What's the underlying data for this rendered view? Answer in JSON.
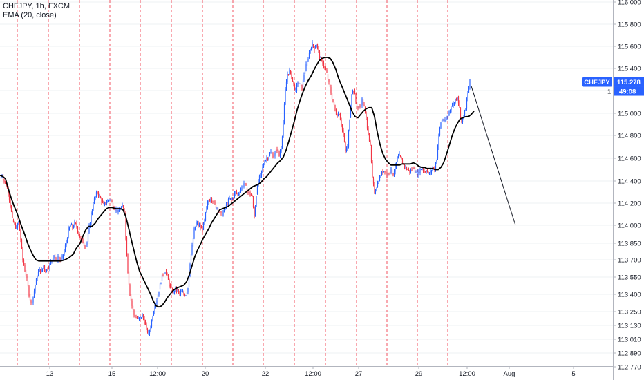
{
  "chart_data": {
    "type": "candlestick",
    "title": "CHFJPY, 1h, FXCM",
    "indicator": "EMA (20, close)",
    "y_ticks": [
      "116.000",
      "115.800",
      "115.600",
      "115.400",
      "115.200",
      "115.000",
      "114.800",
      "114.600",
      "114.400",
      "114.200",
      "114.000",
      "113.850",
      "113.700",
      "113.550",
      "113.400",
      "113.250",
      "113.130",
      "113.010",
      "112.890",
      "112.770"
    ],
    "x_ticks": [
      "13",
      "15",
      "12:00",
      "20",
      "22",
      "12:00",
      "27",
      "29",
      "12:00",
      "Aug",
      "5"
    ],
    "last_price": {
      "symbol": "CHFJPY",
      "value": "115.278",
      "countdown": "49:08",
      "marker": "1"
    },
    "ema_close": [
      [
        0,
        114.45
      ],
      [
        4,
        114.44
      ],
      [
        8,
        114.42
      ],
      [
        12,
        114.33
      ],
      [
        16,
        114.25
      ],
      [
        20,
        114.18
      ],
      [
        24,
        114.12
      ],
      [
        28,
        114.05
      ],
      [
        32,
        113.98
      ],
      [
        36,
        113.92
      ],
      [
        40,
        113.85
      ],
      [
        44,
        113.79
      ],
      [
        48,
        113.74
      ],
      [
        52,
        113.7
      ],
      [
        56,
        113.69
      ],
      [
        60,
        113.69
      ],
      [
        66,
        113.69
      ],
      [
        72,
        113.69
      ],
      [
        80,
        113.69
      ],
      [
        88,
        113.69
      ],
      [
        94,
        113.7
      ],
      [
        100,
        113.72
      ],
      [
        106,
        113.75
      ],
      [
        110,
        113.8
      ],
      [
        116,
        113.85
      ],
      [
        120,
        113.91
      ],
      [
        124,
        113.96
      ],
      [
        128,
        113.99
      ],
      [
        133,
        113.99
      ],
      [
        138,
        114.02
      ],
      [
        142,
        114.06
      ],
      [
        146,
        114.09
      ],
      [
        150,
        114.12
      ],
      [
        154,
        114.15
      ],
      [
        158,
        114.16
      ],
      [
        162,
        114.16
      ],
      [
        168,
        114.15
      ],
      [
        174,
        114.15
      ],
      [
        178,
        114.14
      ],
      [
        182,
        114.08
      ],
      [
        186,
        113.98
      ],
      [
        190,
        113.88
      ],
      [
        194,
        113.78
      ],
      [
        198,
        113.68
      ],
      [
        202,
        113.6
      ],
      [
        206,
        113.55
      ],
      [
        210,
        113.5
      ],
      [
        214,
        113.45
      ],
      [
        218,
        113.4
      ],
      [
        222,
        113.34
      ],
      [
        226,
        113.3
      ],
      [
        230,
        113.29
      ],
      [
        234,
        113.3
      ],
      [
        238,
        113.33
      ],
      [
        242,
        113.37
      ],
      [
        246,
        113.4
      ],
      [
        250,
        113.43
      ],
      [
        254,
        113.45
      ],
      [
        258,
        113.46
      ],
      [
        262,
        113.47
      ],
      [
        266,
        113.48
      ],
      [
        270,
        113.51
      ],
      [
        274,
        113.57
      ],
      [
        278,
        113.65
      ],
      [
        282,
        113.73
      ],
      [
        286,
        113.79
      ],
      [
        290,
        113.84
      ],
      [
        294,
        113.89
      ],
      [
        298,
        113.93
      ],
      [
        302,
        113.97
      ],
      [
        306,
        114.02
      ],
      [
        310,
        114.06
      ],
      [
        314,
        114.1
      ],
      [
        318,
        114.14
      ],
      [
        322,
        114.15
      ],
      [
        326,
        114.16
      ],
      [
        330,
        114.17
      ],
      [
        334,
        114.19
      ],
      [
        338,
        114.21
      ],
      [
        342,
        114.23
      ],
      [
        346,
        114.25
      ],
      [
        350,
        114.27
      ],
      [
        354,
        114.29
      ],
      [
        358,
        114.31
      ],
      [
        362,
        114.33
      ],
      [
        366,
        114.35
      ],
      [
        370,
        114.36
      ],
      [
        374,
        114.37
      ],
      [
        378,
        114.39
      ],
      [
        382,
        114.42
      ],
      [
        386,
        114.44
      ],
      [
        390,
        114.47
      ],
      [
        394,
        114.5
      ],
      [
        398,
        114.53
      ],
      [
        402,
        114.56
      ],
      [
        406,
        114.58
      ],
      [
        410,
        114.61
      ],
      [
        414,
        114.67
      ],
      [
        418,
        114.75
      ],
      [
        422,
        114.84
      ],
      [
        426,
        114.93
      ],
      [
        430,
        115.03
      ],
      [
        434,
        115.11
      ],
      [
        438,
        115.18
      ],
      [
        442,
        115.24
      ],
      [
        446,
        115.29
      ],
      [
        450,
        115.33
      ],
      [
        454,
        115.38
      ],
      [
        458,
        115.43
      ],
      [
        462,
        115.47
      ],
      [
        466,
        115.49
      ],
      [
        470,
        115.5
      ],
      [
        474,
        115.5
      ],
      [
        478,
        115.49
      ],
      [
        482,
        115.45
      ],
      [
        486,
        115.39
      ],
      [
        490,
        115.31
      ],
      [
        494,
        115.25
      ],
      [
        498,
        115.19
      ],
      [
        502,
        115.13
      ],
      [
        506,
        115.07
      ],
      [
        510,
        115.01
      ],
      [
        514,
        114.97
      ],
      [
        518,
        114.96
      ],
      [
        522,
        114.99
      ],
      [
        526,
        115.02
      ],
      [
        530,
        115.04
      ],
      [
        534,
        115.05
      ],
      [
        538,
        115.05
      ],
      [
        542,
        114.97
      ],
      [
        546,
        114.83
      ],
      [
        550,
        114.72
      ],
      [
        554,
        114.64
      ],
      [
        558,
        114.59
      ],
      [
        562,
        114.56
      ],
      [
        566,
        114.54
      ],
      [
        570,
        114.54
      ],
      [
        574,
        114.54
      ],
      [
        578,
        114.54
      ],
      [
        582,
        114.55
      ],
      [
        586,
        114.55
      ],
      [
        590,
        114.55
      ],
      [
        594,
        114.55
      ],
      [
        598,
        114.56
      ],
      [
        602,
        114.55
      ],
      [
        606,
        114.53
      ],
      [
        610,
        114.52
      ],
      [
        614,
        114.52
      ],
      [
        618,
        114.51
      ],
      [
        622,
        114.51
      ],
      [
        626,
        114.51
      ],
      [
        630,
        114.5
      ],
      [
        634,
        114.5
      ],
      [
        638,
        114.52
      ],
      [
        642,
        114.56
      ],
      [
        646,
        114.63
      ],
      [
        650,
        114.71
      ],
      [
        654,
        114.79
      ],
      [
        658,
        114.86
      ],
      [
        662,
        114.91
      ],
      [
        666,
        114.95
      ],
      [
        670,
        114.96
      ],
      [
        674,
        114.97
      ],
      [
        678,
        114.97
      ],
      [
        682,
        114.99
      ],
      [
        686,
        115.02
      ]
    ],
    "candle_path": [
      [
        0,
        114.42
      ],
      [
        3,
        114.46
      ],
      [
        6,
        114.4
      ],
      [
        9,
        114.36
      ],
      [
        12,
        114.3
      ],
      [
        15,
        114.18
      ],
      [
        18,
        114.05
      ],
      [
        21,
        114.0
      ],
      [
        24,
        113.98
      ],
      [
        27,
        114.03
      ],
      [
        30,
        113.88
      ],
      [
        33,
        113.7
      ],
      [
        36,
        113.61
      ],
      [
        39,
        113.52
      ],
      [
        42,
        113.4
      ],
      [
        45,
        113.32
      ],
      [
        48,
        113.38
      ],
      [
        51,
        113.48
      ],
      [
        54,
        113.56
      ],
      [
        57,
        113.62
      ],
      [
        60,
        113.6
      ],
      [
        63,
        113.65
      ],
      [
        66,
        113.6
      ],
      [
        69,
        113.63
      ],
      [
        72,
        113.66
      ],
      [
        75,
        113.7
      ],
      [
        78,
        113.75
      ],
      [
        81,
        113.68
      ],
      [
        84,
        113.73
      ],
      [
        87,
        113.7
      ],
      [
        90,
        113.72
      ],
      [
        93,
        113.78
      ],
      [
        96,
        113.86
      ],
      [
        99,
        113.96
      ],
      [
        102,
        114.0
      ],
      [
        105,
        113.98
      ],
      [
        108,
        114.02
      ],
      [
        111,
        113.99
      ],
      [
        114,
        113.93
      ],
      [
        117,
        113.88
      ],
      [
        120,
        113.86
      ],
      [
        123,
        113.82
      ],
      [
        126,
        113.86
      ],
      [
        129,
        113.98
      ],
      [
        132,
        114.1
      ],
      [
        135,
        114.2
      ],
      [
        138,
        114.26
      ],
      [
        141,
        114.3
      ],
      [
        144,
        114.26
      ],
      [
        147,
        114.22
      ],
      [
        150,
        114.18
      ],
      [
        153,
        114.2
      ],
      [
        156,
        114.22
      ],
      [
        159,
        114.24
      ],
      [
        162,
        114.2
      ],
      [
        165,
        114.16
      ],
      [
        168,
        114.14
      ],
      [
        171,
        114.12
      ],
      [
        174,
        114.15
      ],
      [
        177,
        114.17
      ],
      [
        180,
        114.12
      ],
      [
        182,
        113.9
      ],
      [
        185,
        113.6
      ],
      [
        188,
        113.4
      ],
      [
        191,
        113.3
      ],
      [
        194,
        113.22
      ],
      [
        197,
        113.2
      ],
      [
        200,
        113.18
      ],
      [
        203,
        113.2
      ],
      [
        206,
        113.22
      ],
      [
        209,
        113.16
      ],
      [
        212,
        113.1
      ],
      [
        215,
        113.06
      ],
      [
        218,
        113.12
      ],
      [
        221,
        113.22
      ],
      [
        224,
        113.3
      ],
      [
        227,
        113.36
      ],
      [
        230,
        113.44
      ],
      [
        233,
        113.52
      ],
      [
        236,
        113.58
      ],
      [
        239,
        113.6
      ],
      [
        242,
        113.56
      ],
      [
        245,
        113.48
      ],
      [
        248,
        113.44
      ],
      [
        251,
        113.42
      ],
      [
        254,
        113.45
      ],
      [
        257,
        113.43
      ],
      [
        260,
        113.4
      ],
      [
        263,
        113.42
      ],
      [
        266,
        113.4
      ],
      [
        269,
        113.4
      ],
      [
        272,
        113.46
      ],
      [
        275,
        113.68
      ],
      [
        278,
        113.82
      ],
      [
        281,
        113.96
      ],
      [
        284,
        114.02
      ],
      [
        287,
        114.0
      ],
      [
        290,
        113.98
      ],
      [
        293,
        113.96
      ],
      [
        296,
        114.04
      ],
      [
        299,
        114.16
      ],
      [
        302,
        114.22
      ],
      [
        305,
        114.25
      ],
      [
        308,
        114.22
      ],
      [
        311,
        114.18
      ],
      [
        314,
        114.16
      ],
      [
        317,
        114.13
      ],
      [
        320,
        114.09
      ],
      [
        323,
        114.12
      ],
      [
        326,
        114.16
      ],
      [
        329,
        114.2
      ],
      [
        332,
        114.24
      ],
      [
        335,
        114.23
      ],
      [
        338,
        114.26
      ],
      [
        341,
        114.3
      ],
      [
        344,
        114.28
      ],
      [
        347,
        114.3
      ],
      [
        350,
        114.35
      ],
      [
        353,
        114.38
      ],
      [
        356,
        114.34
      ],
      [
        359,
        114.3
      ],
      [
        362,
        114.28
      ],
      [
        365,
        114.25
      ],
      [
        368,
        114.08
      ],
      [
        371,
        114.28
      ],
      [
        374,
        114.4
      ],
      [
        377,
        114.45
      ],
      [
        380,
        114.52
      ],
      [
        383,
        114.58
      ],
      [
        386,
        114.6
      ],
      [
        389,
        114.62
      ],
      [
        392,
        114.65
      ],
      [
        395,
        114.62
      ],
      [
        398,
        114.64
      ],
      [
        401,
        114.68
      ],
      [
        404,
        114.62
      ],
      [
        407,
        114.7
      ],
      [
        410,
        114.92
      ],
      [
        413,
        115.2
      ],
      [
        416,
        115.35
      ],
      [
        419,
        115.38
      ],
      [
        422,
        115.32
      ],
      [
        425,
        115.25
      ],
      [
        428,
        115.2
      ],
      [
        431,
        115.28
      ],
      [
        434,
        115.25
      ],
      [
        437,
        115.22
      ],
      [
        440,
        115.35
      ],
      [
        443,
        115.42
      ],
      [
        446,
        115.5
      ],
      [
        449,
        115.58
      ],
      [
        452,
        115.62
      ],
      [
        455,
        115.58
      ],
      [
        458,
        115.62
      ],
      [
        461,
        115.55
      ],
      [
        464,
        115.48
      ],
      [
        467,
        115.45
      ],
      [
        470,
        115.4
      ],
      [
        473,
        115.35
      ],
      [
        476,
        115.26
      ],
      [
        479,
        115.18
      ],
      [
        482,
        115.1
      ],
      [
        485,
        115.02
      ],
      [
        488,
        114.98
      ],
      [
        491,
        115.0
      ],
      [
        494,
        114.9
      ],
      [
        497,
        114.8
      ],
      [
        500,
        114.66
      ],
      [
        503,
        114.7
      ],
      [
        506,
        114.96
      ],
      [
        509,
        115.18
      ],
      [
        512,
        115.2
      ],
      [
        515,
        115.1
      ],
      [
        518,
        115.04
      ],
      [
        521,
        115.06
      ],
      [
        524,
        115.12
      ],
      [
        527,
        115.05
      ],
      [
        530,
        114.95
      ],
      [
        533,
        114.82
      ],
      [
        536,
        114.7
      ],
      [
        539,
        114.42
      ],
      [
        542,
        114.3
      ],
      [
        545,
        114.35
      ],
      [
        548,
        114.4
      ],
      [
        551,
        114.45
      ],
      [
        554,
        114.48
      ],
      [
        557,
        114.5
      ],
      [
        560,
        114.44
      ],
      [
        563,
        114.48
      ],
      [
        566,
        114.5
      ],
      [
        569,
        114.46
      ],
      [
        572,
        114.52
      ],
      [
        575,
        114.6
      ],
      [
        578,
        114.62
      ],
      [
        581,
        114.58
      ],
      [
        584,
        114.55
      ],
      [
        587,
        114.52
      ],
      [
        590,
        114.5
      ],
      [
        593,
        114.48
      ],
      [
        596,
        114.5
      ],
      [
        599,
        114.52
      ],
      [
        602,
        114.46
      ],
      [
        605,
        114.48
      ],
      [
        608,
        114.5
      ],
      [
        611,
        114.52
      ],
      [
        614,
        114.48
      ],
      [
        617,
        114.5
      ],
      [
        620,
        114.46
      ],
      [
        623,
        114.48
      ],
      [
        626,
        114.52
      ],
      [
        629,
        114.5
      ],
      [
        632,
        114.6
      ],
      [
        635,
        114.8
      ],
      [
        638,
        114.92
      ],
      [
        641,
        114.95
      ],
      [
        644,
        114.92
      ],
      [
        647,
        114.96
      ],
      [
        650,
        115.02
      ],
      [
        653,
        115.06
      ],
      [
        656,
        115.08
      ],
      [
        659,
        115.12
      ],
      [
        662,
        115.15
      ],
      [
        665,
        115.05
      ],
      [
        668,
        114.92
      ],
      [
        671,
        114.98
      ],
      [
        674,
        115.04
      ],
      [
        677,
        115.18
      ],
      [
        680,
        115.28
      ]
    ],
    "forecast_line": [
      [
        682,
        115.24
      ],
      [
        746,
        114.0
      ]
    ],
    "price_range": [
      112.77,
      116.06
    ]
  }
}
